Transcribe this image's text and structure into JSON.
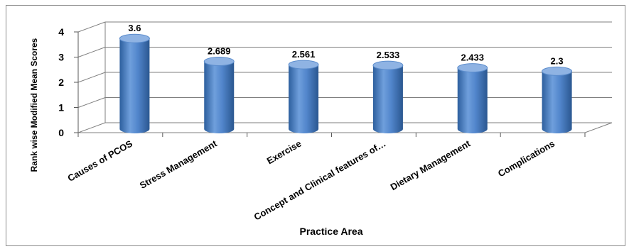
{
  "chart_data": {
    "type": "bar",
    "categories": [
      "Causes of PCOS",
      "Stress Management",
      "Exercise",
      "Concept and Clinical features of…",
      "Dietary Management",
      "Complications"
    ],
    "series": [
      {
        "values": [
          3.6,
          2.689,
          2.561,
          2.533,
          2.433,
          2.3
        ]
      }
    ],
    "data_labels": [
      "3.6",
      "2.689",
      "2.561",
      "2.533",
      "2.433",
      "2.3"
    ],
    "y_ticks": [
      "0",
      "1",
      "2",
      "3",
      "4"
    ],
    "ylim": [
      0,
      4
    ],
    "xlabel": "Practice Area",
    "ylabel": "Rank wise  Modified Mean Scores",
    "grid": true,
    "legend": "none",
    "colors": {
      "bar": "#4a7fc1",
      "bar_dark": "#2a5790",
      "bar_light": "#8fb3e3",
      "grid": "#7f7f7f"
    }
  }
}
